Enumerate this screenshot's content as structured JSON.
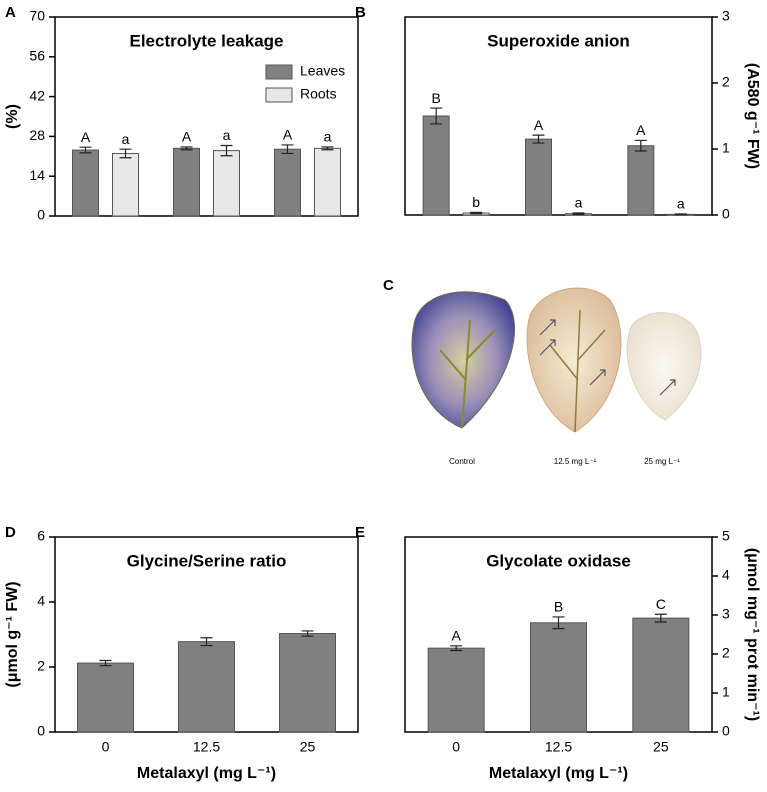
{
  "chart_data": [
    {
      "type": "bar",
      "panel": "A",
      "title": "Electrolyte leakage",
      "ylabel": "(%)",
      "categories": [
        null,
        null,
        null
      ],
      "ylim": [
        0,
        70
      ],
      "yticks": [
        0,
        14,
        28,
        42,
        56,
        70
      ],
      "legend": "upper right",
      "series": [
        {
          "name": "Leaves",
          "color": "#808080",
          "values": [
            23.2,
            23.8,
            23.5
          ],
          "errors": [
            1.0,
            0.5,
            1.5
          ],
          "letters": [
            "A",
            "A",
            "A"
          ]
        },
        {
          "name": "Roots",
          "color": "#e8e8e8",
          "values": [
            22.0,
            23.0,
            23.8
          ],
          "errors": [
            1.5,
            1.8,
            0.5
          ],
          "letters": [
            "a",
            "a",
            "a"
          ]
        }
      ]
    },
    {
      "type": "bar",
      "panel": "B",
      "title": "Superoxide anion",
      "y2label": "(A580 g⁻¹ FW)",
      "categories": [
        null,
        null,
        null
      ],
      "y2lim": [
        0,
        3
      ],
      "y2ticks": [
        0,
        1,
        2,
        3
      ],
      "series": [
        {
          "name": "Leaves",
          "axis": "y2",
          "color": "#808080",
          "values": [
            1.5,
            1.15,
            1.05
          ],
          "errors": [
            0.12,
            0.06,
            0.08
          ],
          "letters": [
            "B",
            "A",
            "A"
          ]
        },
        {
          "name": "Roots",
          "axis": "y2",
          "color": "#e8e8e8",
          "values": [
            0.03,
            0.02,
            0.01
          ],
          "errors": [
            0.01,
            0.01,
            0.005
          ],
          "letters": [
            "b",
            "a",
            "a"
          ]
        }
      ]
    },
    {
      "type": "bar",
      "panel": "D",
      "title": "Glycine/Serine ratio",
      "ylabel": "(μmol g⁻¹ FW)",
      "xlabel": "Metalaxyl (mg L⁻¹)",
      "categories": [
        "0",
        "12.5",
        "25"
      ],
      "ylim": [
        0,
        6
      ],
      "yticks": [
        0,
        2,
        4,
        6
      ],
      "series": [
        {
          "name": "Glycine/Serine",
          "color": "#808080",
          "values": [
            2.12,
            2.78,
            3.03
          ],
          "errors": [
            0.08,
            0.12,
            0.08
          ]
        }
      ]
    },
    {
      "type": "bar",
      "panel": "E",
      "title": "Glycolate oxidase",
      "y2label": "(μmol mg⁻¹ prot min⁻¹)",
      "xlabel": "Metalaxyl (mg L⁻¹)",
      "categories": [
        "0",
        "12.5",
        "25"
      ],
      "y2lim": [
        0,
        5
      ],
      "y2ticks": [
        0,
        1,
        2,
        3,
        4,
        5
      ],
      "series": [
        {
          "name": "Glycolate oxidase",
          "axis": "y2",
          "color": "#808080",
          "values": [
            2.15,
            2.8,
            2.92
          ],
          "errors": [
            0.06,
            0.15,
            0.1
          ],
          "letters": [
            "A",
            "B",
            "C"
          ]
        }
      ]
    }
  ],
  "panel_c": {
    "panel": "C",
    "labels": [
      "Control",
      "12.5 mg L⁻¹",
      "25 mg L⁻¹"
    ]
  }
}
